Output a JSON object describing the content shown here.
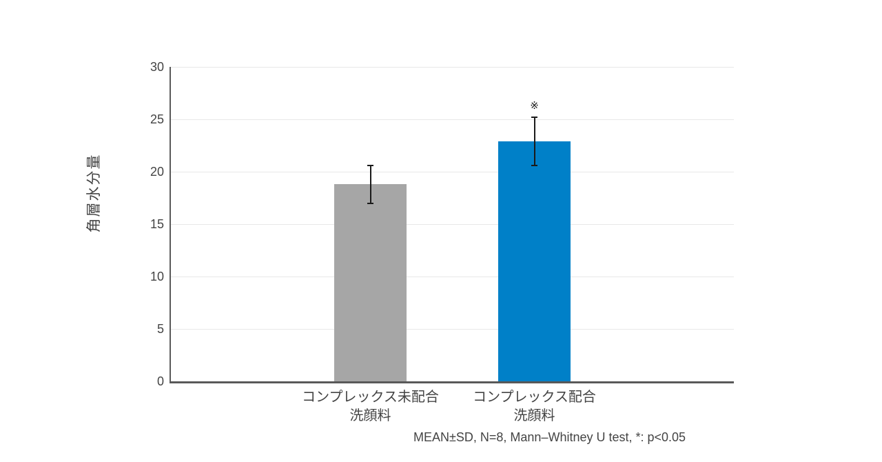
{
  "chart_data": {
    "type": "bar",
    "title": "",
    "xlabel": "",
    "ylabel": "角層水分量",
    "ylim": [
      0,
      30
    ],
    "yticks": [
      0,
      5,
      10,
      15,
      20,
      25,
      30
    ],
    "grid": "horizontal",
    "legend": "none",
    "categories": [
      {
        "line1": "コンプレックス未配合",
        "line2": "洗顔料"
      },
      {
        "line1": "コンプレックス配合",
        "line2": "洗顔料"
      }
    ],
    "series": [
      {
        "name": "角層水分量",
        "values": [
          18.8,
          22.9
        ],
        "sd": [
          1.8,
          2.3
        ],
        "bar_colors": [
          "#a6a6a6",
          "#0080c8"
        ],
        "significance": [
          "",
          "※"
        ]
      }
    ],
    "note": "MEAN±SD, N=8, Mann–Whitney U test, *: p<0.05",
    "colors": {
      "axis": "#595959",
      "grid": "#e8e8e8",
      "error_bar": "#1a1a1a",
      "text": "#444444"
    }
  }
}
